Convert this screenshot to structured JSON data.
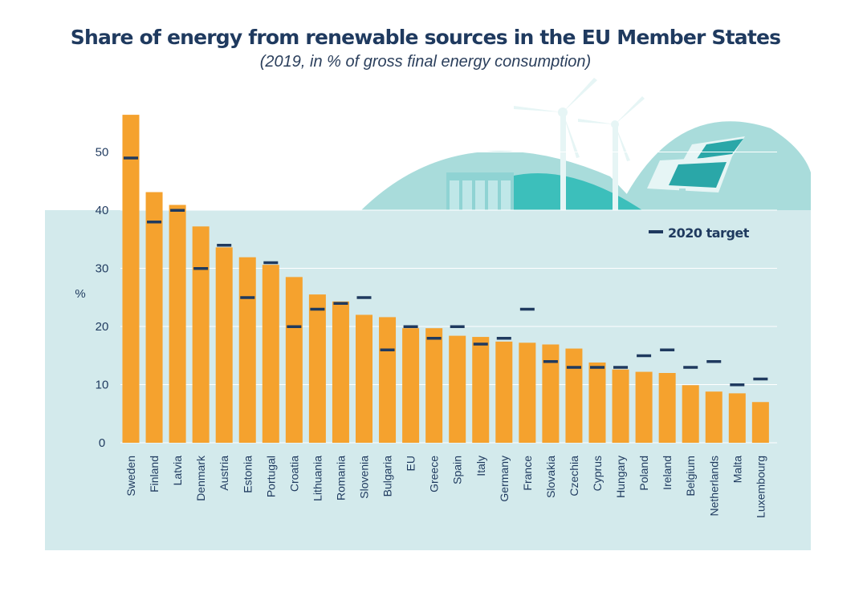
{
  "chart_data": {
    "type": "bar",
    "title": "Share of energy from renewable sources in the EU Member States",
    "subtitle": "(2019, in % of gross final energy consumption)",
    "ylabel": "%",
    "ylim": [
      0,
      57
    ],
    "yticks": [
      0,
      10,
      20,
      30,
      40,
      50
    ],
    "grid": true,
    "legend_position": "top-right",
    "categories": [
      "Sweden",
      "Finland",
      "Latvia",
      "Denmark",
      "Austria",
      "Estonia",
      "Portugal",
      "Croatia",
      "Lithuania",
      "Romania",
      "Slovenia",
      "Bulgaria",
      "EU",
      "Greece",
      "Spain",
      "Italy",
      "Germany",
      "France",
      "Slovakia",
      "Czechia",
      "Cyprus",
      "Hungary",
      "Poland",
      "Ireland",
      "Belgium",
      "Netherlands",
      "Malta",
      "Luxembourg"
    ],
    "series": [
      {
        "values": [
          56.4,
          43.1,
          40.9,
          37.2,
          33.6,
          31.9,
          30.6,
          28.5,
          25.5,
          24.3,
          22.0,
          21.6,
          19.7,
          19.7,
          18.4,
          18.2,
          17.4,
          17.2,
          16.9,
          16.2,
          13.8,
          12.6,
          12.2,
          12.0,
          9.9,
          8.8,
          8.5,
          7.0
        ],
        "color": "#f5a22e"
      },
      {
        "name": "2020 target",
        "values": [
          49,
          38,
          40,
          30,
          34,
          25,
          31,
          20,
          23,
          24,
          25,
          16,
          20,
          18,
          20,
          17,
          18,
          23,
          14,
          13,
          13,
          13,
          15,
          16,
          13,
          14,
          10,
          11
        ],
        "color": "#1f3a5f"
      }
    ],
    "colors": {
      "bar": "#f5a22e",
      "target": "#1f3a5f",
      "panel": "#d3eaec",
      "hill": "#a9dcdb",
      "hill_dark": "#3cbfbb",
      "text": "#1f3a5f"
    }
  }
}
